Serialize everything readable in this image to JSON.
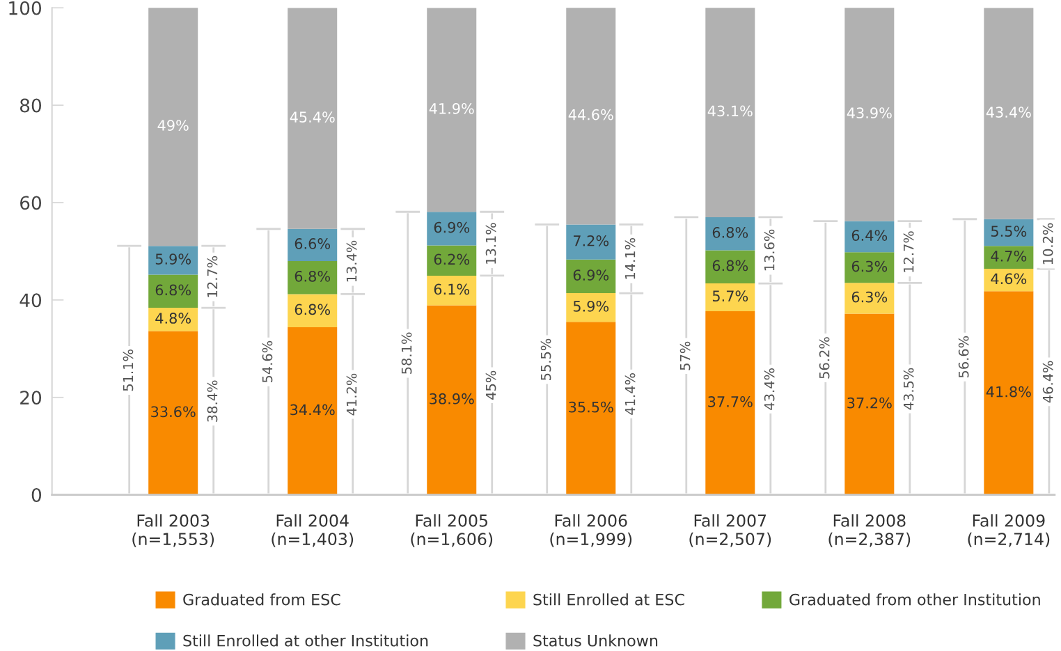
{
  "chart_data": {
    "type": "bar",
    "stacked": true,
    "categories": [
      "Fall 2003\n(n=1,553)",
      "Fall 2004\n(n=1,403)",
      "Fall 2005\n(n=1,606)",
      "Fall 2006\n(n=1,999)",
      "Fall 2007\n(n=2,507)",
      "Fall 2008\n(n=2,387)",
      "Fall 2009\n(n=2,714)"
    ],
    "series": [
      {
        "name": "Graduated from ESC",
        "color": "#f98a00",
        "values": [
          33.6,
          34.4,
          38.9,
          35.5,
          37.7,
          37.2,
          41.8
        ],
        "value_labels": [
          "33.6%",
          "34.4%",
          "38.9%",
          "35.5%",
          "37.7%",
          "37.2%",
          "41.8%"
        ]
      },
      {
        "name": "Still Enrolled at ESC",
        "color": "#fdd54f",
        "values": [
          4.8,
          6.8,
          6.1,
          5.9,
          5.7,
          6.3,
          4.6
        ],
        "value_labels": [
          "4.8%",
          "6.8%",
          "6.1%",
          "5.9%",
          "5.7%",
          "6.3%",
          "4.6%"
        ]
      },
      {
        "name": "Graduated from other Institution",
        "color": "#72a83a",
        "values": [
          6.8,
          6.8,
          6.2,
          6.9,
          6.8,
          6.3,
          4.7
        ],
        "value_labels": [
          "6.8%",
          "6.8%",
          "6.2%",
          "6.9%",
          "6.8%",
          "6.3%",
          "4.7%"
        ]
      },
      {
        "name": "Still Enrolled at other Institution",
        "color": "#5f9fb8",
        "values": [
          5.9,
          6.6,
          6.9,
          7.2,
          6.8,
          6.4,
          5.5
        ],
        "value_labels": [
          "5.9%",
          "6.6%",
          "6.9%",
          "7.2%",
          "6.8%",
          "6.4%",
          "5.5%"
        ]
      },
      {
        "name": "Status Unknown",
        "color": "#b1b1b1",
        "values": [
          49,
          45.4,
          41.9,
          44.6,
          43.1,
          43.9,
          43.4
        ],
        "value_labels": [
          "49%",
          "45.4%",
          "41.9%",
          "44.6%",
          "43.1%",
          "43.9%",
          "43.4%"
        ]
      }
    ],
    "ylim": [
      0,
      100
    ],
    "yticks": [
      0,
      20,
      40,
      60,
      80,
      100
    ],
    "grid": false,
    "legend": "bottom",
    "annotations": [
      "51.1%",
      "38.4%",
      "12.7%",
      "54.6%",
      "41.2%",
      "13.4%",
      "58.1%",
      "45%",
      "13.1%",
      "55.5%",
      "41.4%",
      "14.1%",
      "57%",
      "43.4%",
      "13.6%",
      "56.2%",
      "43.5%",
      "12.7%",
      "56.6%",
      "46.4%",
      "10.2%"
    ]
  }
}
